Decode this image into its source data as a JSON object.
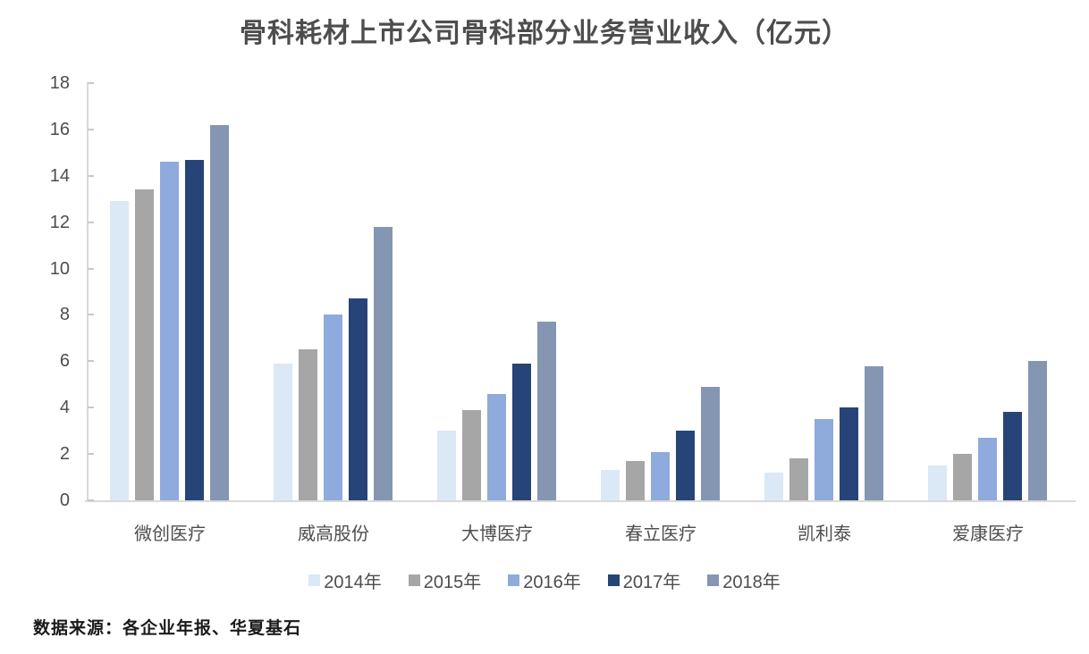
{
  "chart_data": {
    "type": "bar",
    "title": "骨科耗材上市公司骨科部分业务营业收入（亿元）",
    "xlabel": "",
    "ylabel": "",
    "ylim": [
      0,
      18
    ],
    "yticks": [
      0,
      2,
      4,
      6,
      8,
      10,
      12,
      14,
      16,
      18
    ],
    "grid": false,
    "legend_position": "bottom",
    "categories": [
      "微创医疗",
      "威高股份",
      "大博医疗",
      "春立医疗",
      "凯利泰",
      "爱康医疗"
    ],
    "series": [
      {
        "name": "2014年",
        "color": "#dbe8f6",
        "values": [
          12.9,
          5.9,
          3.0,
          1.3,
          1.2,
          1.5
        ]
      },
      {
        "name": "2015年",
        "color": "#a6a6a6",
        "values": [
          13.4,
          6.5,
          3.9,
          1.7,
          1.8,
          2.0
        ]
      },
      {
        "name": "2016年",
        "color": "#8faadc",
        "values": [
          14.6,
          8.0,
          4.6,
          2.1,
          3.5,
          2.7
        ]
      },
      {
        "name": "2017年",
        "color": "#264477",
        "values": [
          14.7,
          8.7,
          5.9,
          3.0,
          4.0,
          3.8
        ]
      },
      {
        "name": "2018年",
        "color": "#8496b2",
        "values": [
          16.2,
          11.8,
          7.7,
          4.9,
          5.8,
          6.0
        ]
      }
    ]
  },
  "footer": {
    "source_text": "数据来源：各企业年报、华夏基石"
  },
  "colors": {
    "axis_line": "#d9d9d9",
    "tick_mark": "#c9c9c9",
    "text_gray": "#4d4d4d",
    "title_gray": "#4d4d4d",
    "footer_black": "#1a1a1a"
  }
}
